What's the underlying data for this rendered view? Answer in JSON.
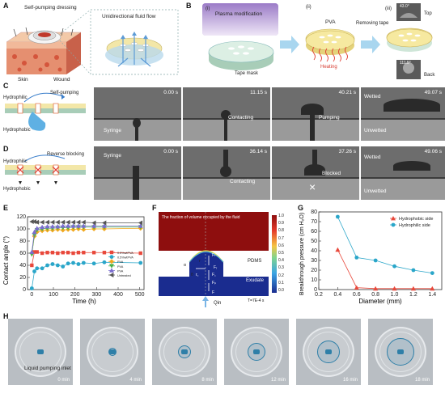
{
  "panels": {
    "a": "A",
    "b": "B",
    "c": "C",
    "d": "D",
    "e": "E",
    "f": "F",
    "g": "G",
    "h": "H"
  },
  "panel_a": {
    "dressing_label": "Self-pumping dressing",
    "skin_label": "Skin",
    "wound_label": "Wound",
    "flow_label": "Unidirectional fluid flow"
  },
  "panel_b": {
    "step1": "(i)",
    "step1_label": "Plasma modification",
    "tape_mask": "Tape mask",
    "step2": "(ii)",
    "step2_label": "PVA",
    "heating": "Heating",
    "remove_tape": "Removing tape",
    "step3": "(iii)",
    "top_angle": "43.0°",
    "top_label": "Top",
    "back_angle": "111.5°",
    "back_label": "Back"
  },
  "panel_c": {
    "hydrophilic": "Hydrophilic",
    "hydrophobic": "Hydrophobic",
    "arrow_label": "Self-pumping",
    "frames": [
      {
        "time": "0.00 s",
        "caption": "Syringe"
      },
      {
        "time": "11.15 s",
        "caption": "Contacting"
      },
      {
        "time": "40.21 s",
        "caption": "Pumping"
      },
      {
        "time": "49.07 s",
        "caption": "Wetted",
        "caption2": "Unwetted"
      }
    ]
  },
  "panel_d": {
    "hydrophilic": "Hydrophilic",
    "hydrophobic": "Hydrophobic",
    "arrow_label": "Reverse blocking",
    "frames": [
      {
        "time": "0.00 s",
        "caption": "Syringe"
      },
      {
        "time": "36.14 s",
        "caption": "Contacting"
      },
      {
        "time": "37.26 s",
        "caption": "Blocked"
      },
      {
        "time": "49.06 s",
        "caption": "Wetted",
        "caption2": "Unwetted"
      }
    ]
  },
  "panel_e": {
    "xlabel": "Time (h)",
    "ylabel": "Contact angle (°)"
  },
  "panel_f": {
    "title": "The fraction of volume occupied by the fluid",
    "pdms": "PDMS",
    "exudate": "Exudate",
    "time": "T=7E-4 s",
    "qin": "Qin",
    "colorbar": [
      "1.0",
      "0.9",
      "0.8",
      "0.7",
      "0.6",
      "0.5",
      "0.4",
      "0.3",
      "0.2",
      "0.1",
      "0.0"
    ],
    "sym_f": "F",
    "sym_fl": "Fₗ",
    "sym_fg": "F꜀",
    "sym_fp": "Fₚ",
    "sym_fr": "Fᵣ",
    "sym_theta": "θ",
    "sym_alpha": "α",
    "sym_r": "r",
    "sym_rh": "r꜀"
  },
  "panel_g": {
    "xlabel": "Diameter (mm)",
    "ylabel": "Breakthrough pressure (cm H₂O)"
  },
  "panel_h": {
    "inlet_label": "Liquid pumping inlet",
    "times": [
      "0 min",
      "4 min",
      "8 min",
      "12 min",
      "16 min",
      "18 min"
    ]
  },
  "chart_data": [
    {
      "type": "line",
      "xlabel": "Time (h)",
      "ylabel": "Contact angle (°)",
      "xlim": [
        -20,
        520
      ],
      "ylim": [
        0,
        120
      ],
      "xticks": [
        0,
        100,
        200,
        300,
        400,
        500
      ],
      "yticks": [
        0,
        20,
        40,
        60,
        80,
        100,
        120
      ],
      "legend_position": "right",
      "x": [
        0,
        12,
        24,
        48,
        72,
        96,
        120,
        144,
        168,
        192,
        216,
        240,
        288,
        336,
        504
      ],
      "series": [
        {
          "name": "0.5%wtPVA",
          "color": "#e8483b",
          "marker": "square",
          "values": [
            40,
            62,
            62,
            60,
            61,
            61,
            60,
            61,
            61,
            60,
            61,
            61,
            61,
            61,
            60
          ]
        },
        {
          "name": "0.5%wtPVA",
          "color": "#2aa6c9",
          "marker": "circle",
          "values": [
            2,
            30,
            35,
            35,
            40,
            42,
            40,
            38,
            43,
            44,
            42,
            44,
            43,
            45,
            44
          ]
        },
        {
          "name": "PVA",
          "color": "#f2a81d",
          "marker": "diamond",
          "values": [
            60,
            88,
            95,
            97,
            98,
            98,
            99,
            98,
            99,
            99,
            100,
            99,
            100,
            100,
            101
          ]
        },
        {
          "name": "PVA",
          "color": "#4bb04a",
          "marker": "triangle-down",
          "values": [
            58,
            90,
            98,
            100,
            101,
            101,
            102,
            102,
            102,
            103,
            103,
            103,
            103,
            103,
            103
          ]
        },
        {
          "name": "PVA",
          "color": "#7a6ccf",
          "marker": "triangle-up",
          "values": [
            62,
            95,
            101,
            103,
            104,
            104,
            104,
            105,
            105,
            105,
            105,
            105,
            105,
            105,
            105
          ]
        },
        {
          "name": "Untreated",
          "color": "#555555",
          "marker": "triangle-left",
          "values": [
            112,
            112,
            111,
            111,
            111,
            111,
            111,
            111,
            111,
            111,
            111,
            111,
            110,
            110,
            110
          ]
        }
      ]
    },
    {
      "type": "line",
      "xlabel": "Diameter (mm)",
      "ylabel": "Breakthrough pressure (cm H₂O)",
      "xlim": [
        0.2,
        1.5
      ],
      "ylim": [
        0,
        80
      ],
      "xticks": [
        0.2,
        0.4,
        0.6,
        0.8,
        1.0,
        1.2,
        1.4
      ],
      "yticks": [
        0,
        10,
        20,
        30,
        40,
        50,
        60,
        70,
        80
      ],
      "legend_position": "top-right",
      "x": [
        0.4,
        0.6,
        0.8,
        1.0,
        1.2,
        1.4
      ],
      "series": [
        {
          "name": "Hydrophobic side",
          "color": "#e8483b",
          "marker": "triangle",
          "values": [
            41,
            2,
            1,
            1,
            1,
            1
          ]
        },
        {
          "name": "Hydrophilic side",
          "color": "#2aa6c9",
          "marker": "circle",
          "values": [
            75,
            33,
            30,
            24,
            20,
            17
          ]
        }
      ]
    }
  ]
}
